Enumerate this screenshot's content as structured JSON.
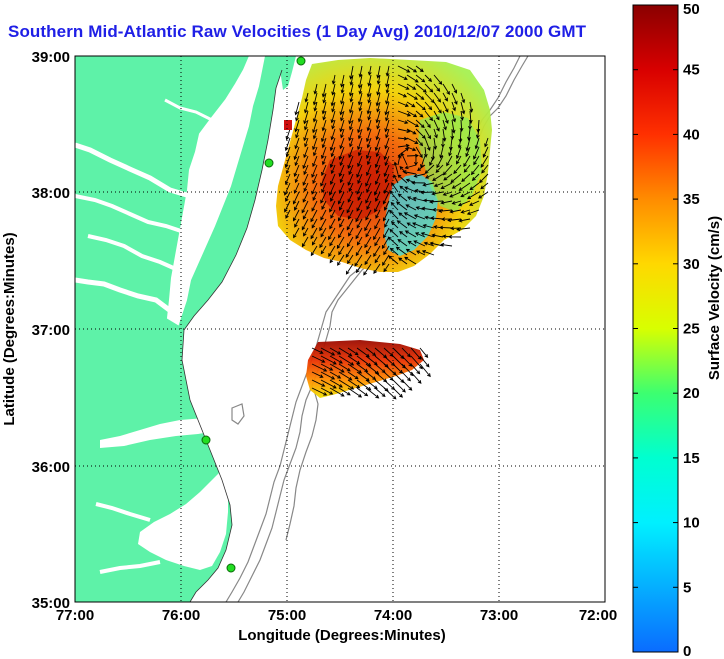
{
  "title": "Southern Mid-Atlantic Raw Velocities (1 Day Avg) 2010/12/07 2000 GMT",
  "colors": {
    "land": "#5ef2a8",
    "title": "#1f1fe6",
    "contour": "#888888"
  },
  "map": {
    "lon_ticks": [
      "77:00",
      "76:00",
      "75:00",
      "74:00",
      "73:00",
      "72:00"
    ],
    "lat_ticks": [
      "39:00",
      "38:00",
      "37:00",
      "36:00",
      "35:00"
    ],
    "xlabel": "Longitude (Degrees:Minutes)",
    "ylabel": "Latitude (Degrees:Minutes)"
  },
  "colorbar": {
    "label": "Surface Velocity (cm/s)",
    "min": 0,
    "max": 50,
    "ticks": [
      "0",
      "5",
      "10",
      "15",
      "20",
      "25",
      "30",
      "35",
      "40",
      "45",
      "50"
    ]
  }
}
